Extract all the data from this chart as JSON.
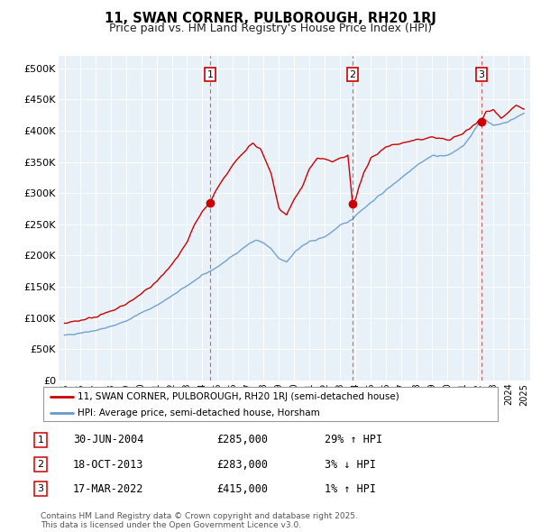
{
  "title": "11, SWAN CORNER, PULBOROUGH, RH20 1RJ",
  "subtitle": "Price paid vs. HM Land Registry's House Price Index (HPI)",
  "background_color": "#ffffff",
  "plot_bg_color": "#e8f0f8",
  "hpi_color": "#6699cc",
  "price_color": "#cc0000",
  "ylim": [
    0,
    520000
  ],
  "yticks": [
    0,
    50000,
    100000,
    150000,
    200000,
    250000,
    300000,
    350000,
    400000,
    450000,
    500000
  ],
  "ytick_labels": [
    "£0",
    "£50K",
    "£100K",
    "£150K",
    "£200K",
    "£250K",
    "£300K",
    "£350K",
    "£400K",
    "£450K",
    "£500K"
  ],
  "xlim_start": 1994.6,
  "xlim_end": 2025.4,
  "sale_dates": [
    2004.5,
    2013.8,
    2022.21
  ],
  "sale_prices": [
    285000,
    283000,
    415000
  ],
  "sale_labels": [
    "1",
    "2",
    "3"
  ],
  "legend_line1": "11, SWAN CORNER, PULBOROUGH, RH20 1RJ (semi-detached house)",
  "legend_line2": "HPI: Average price, semi-detached house, Horsham",
  "table_entries": [
    {
      "num": "1",
      "date": "30-JUN-2004",
      "price": "£285,000",
      "change": "29% ↑ HPI"
    },
    {
      "num": "2",
      "date": "18-OCT-2013",
      "price": "£283,000",
      "change": "3% ↓ HPI"
    },
    {
      "num": "3",
      "date": "17-MAR-2022",
      "price": "£415,000",
      "change": "1% ↑ HPI"
    }
  ],
  "footnote": "Contains HM Land Registry data © Crown copyright and database right 2025.\nThis data is licensed under the Open Government Licence v3.0.",
  "hpi_anchors_x": [
    1995.0,
    1996.0,
    1997.0,
    1998.0,
    1999.0,
    2000.0,
    2001.0,
    2002.0,
    2003.0,
    2004.0,
    2004.5,
    2005.0,
    2006.0,
    2007.0,
    2007.5,
    2008.0,
    2008.5,
    2009.0,
    2009.5,
    2010.0,
    2010.5,
    2011.0,
    2012.0,
    2013.0,
    2013.8,
    2014.0,
    2015.0,
    2016.0,
    2017.0,
    2018.0,
    2019.0,
    2020.0,
    2021.0,
    2021.5,
    2022.0,
    2022.21,
    2022.5,
    2023.0,
    2024.0,
    2025.0
  ],
  "hpi_anchors_y": [
    72000,
    76000,
    80000,
    86000,
    95000,
    108000,
    120000,
    135000,
    152000,
    168000,
    175000,
    182000,
    200000,
    218000,
    225000,
    220000,
    210000,
    195000,
    190000,
    205000,
    215000,
    222000,
    230000,
    248000,
    258000,
    265000,
    285000,
    305000,
    325000,
    345000,
    360000,
    360000,
    375000,
    390000,
    410000,
    415000,
    418000,
    408000,
    415000,
    428000
  ],
  "price_anchors_x": [
    1995.0,
    1996.0,
    1997.0,
    1998.0,
    1999.0,
    2000.0,
    2001.0,
    2002.0,
    2003.0,
    2003.5,
    2004.0,
    2004.5,
    2005.0,
    2006.0,
    2007.0,
    2007.3,
    2007.8,
    2008.5,
    2009.0,
    2009.5,
    2010.0,
    2010.5,
    2011.0,
    2011.5,
    2012.0,
    2012.5,
    2013.0,
    2013.5,
    2013.8,
    2014.0,
    2014.2,
    2014.5,
    2015.0,
    2016.0,
    2017.0,
    2018.0,
    2019.0,
    2020.0,
    2021.0,
    2021.5,
    2022.0,
    2022.21,
    2022.5,
    2023.0,
    2023.5,
    2024.0,
    2024.5,
    2025.0
  ],
  "price_anchors_y": [
    92000,
    96000,
    102000,
    110000,
    122000,
    138000,
    158000,
    185000,
    220000,
    250000,
    270000,
    285000,
    310000,
    345000,
    375000,
    380000,
    370000,
    330000,
    275000,
    265000,
    290000,
    310000,
    340000,
    355000,
    355000,
    350000,
    355000,
    360000,
    283000,
    290000,
    310000,
    330000,
    355000,
    375000,
    380000,
    385000,
    390000,
    385000,
    395000,
    405000,
    415000,
    415000,
    430000,
    435000,
    420000,
    430000,
    440000,
    435000
  ]
}
